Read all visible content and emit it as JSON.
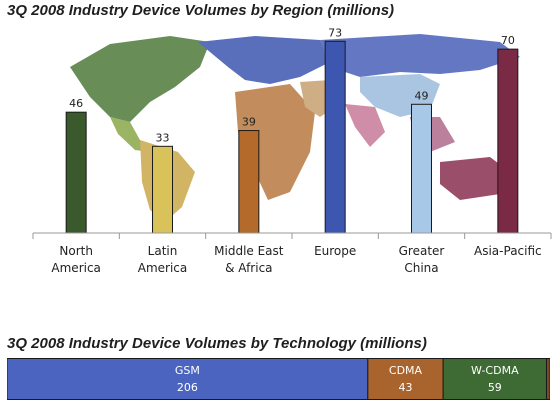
{
  "chart_data": [
    {
      "type": "bar",
      "title": "3Q 2008 Industry Device Volumes by Region (millions)",
      "categories": [
        [
          "North",
          "America"
        ],
        [
          "Latin",
          "America"
        ],
        [
          "Middle East",
          "& Africa"
        ],
        [
          "Europe"
        ],
        [
          "Greater",
          "China"
        ],
        [
          "Asia-Pacific"
        ]
      ],
      "values": [
        46,
        33,
        39,
        73,
        49,
        70
      ],
      "colors": [
        "#3a5a2e",
        "#d9c25a",
        "#b36a2a",
        "#3d56b0",
        "#a8c8e8",
        "#7a2a45"
      ],
      "ylim": [
        0,
        75
      ],
      "grid": false,
      "legend": "none"
    },
    {
      "type": "bar",
      "title": "3Q 2008 Industry Device Volumes by Technology (millions)",
      "orientation": "horizontal-stacked",
      "categories": [
        "GSM",
        "CDMA",
        "W-CDMA",
        ""
      ],
      "values": [
        206,
        43,
        59,
        2
      ],
      "colors": [
        "#4a64c0",
        "#a9632c",
        "#3e6a34",
        "#7a4a20"
      ]
    }
  ]
}
